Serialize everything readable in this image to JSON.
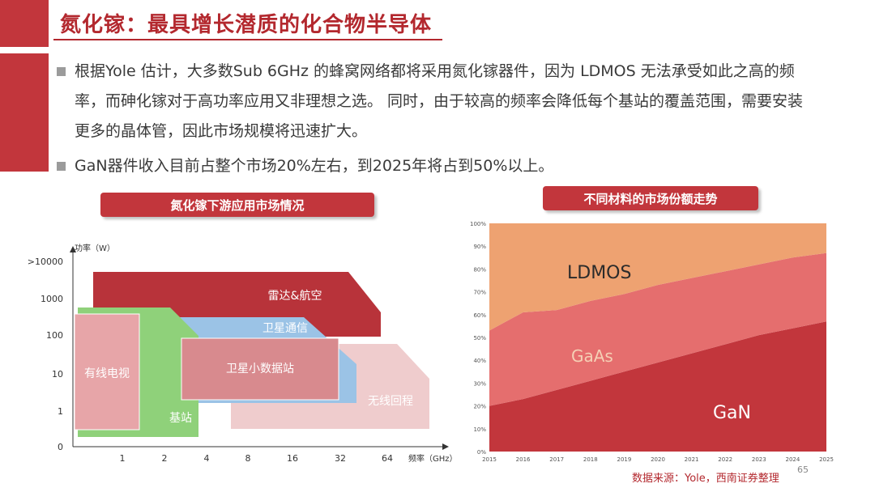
{
  "title": "氮化镓：最具增长潜质的化合物半导体",
  "bullets": [
    "根据Yole 估计，大多数Sub 6GHz 的蜂窝网络都将采用氮化镓器件，因为 LDMOS 无法承受如此之高的频率，而砷化镓对于高功率应用又非理想之选。 同时，由于较高的频率会降低每个基站的覆盖范围，需要安装更多的晶体管，因此市场规模将迅速扩大。",
    "GaN器件收入目前占整个市场20%左右，到2025年将占到50%以上。"
  ],
  "chart1": {
    "title": "氮化镓下游应用市场情况",
    "y_axis_label": "功率（W）",
    "x_axis_label": "频率（GHz）",
    "y_ticks": [
      ">10000",
      "1000",
      "100",
      "10",
      "1",
      "0"
    ],
    "x_ticks": [
      "1",
      "2",
      "4",
      "8",
      "16",
      "32",
      "64"
    ],
    "regions": [
      {
        "label": "雷达&航空",
        "color": "#b8333a"
      },
      {
        "label": "卫星通信",
        "color": "#9bc3e6"
      },
      {
        "label": "无线回程",
        "color": "#efcccd"
      },
      {
        "label": "基站",
        "color": "#8fd17a"
      },
      {
        "label": "卫星小数据站",
        "color": "#d88a8e"
      },
      {
        "label": "有线电视",
        "color": "#e7a5a8"
      }
    ]
  },
  "chart2": {
    "title": "不同材料的市场份额走势"
  },
  "chart_data": {
    "type": "area",
    "x": [
      "2015",
      "2016",
      "2017",
      "2018",
      "2019",
      "2020",
      "2021",
      "2022",
      "2023",
      "2024",
      "2025"
    ],
    "y_ticks": [
      "0%",
      "10%",
      "20%",
      "30%",
      "40%",
      "50%",
      "60%",
      "70%",
      "80%",
      "90%",
      "100%"
    ],
    "ylim": [
      0,
      100
    ],
    "series": [
      {
        "name": "GaN",
        "color": "#c2363c",
        "values": [
          20,
          23,
          27,
          31,
          35,
          39,
          43,
          47,
          51,
          54,
          57
        ]
      },
      {
        "name": "GaAs",
        "color": "#e56e6e",
        "values": [
          33,
          38,
          35,
          35,
          34,
          34,
          33,
          32,
          31,
          31,
          30
        ]
      },
      {
        "name": "LDMOS",
        "color": "#eea271",
        "values": [
          47,
          39,
          38,
          34,
          31,
          27,
          24,
          21,
          18,
          15,
          13
        ]
      }
    ]
  },
  "source": "数据来源：Yole，西南证券整理",
  "page_number": "65"
}
